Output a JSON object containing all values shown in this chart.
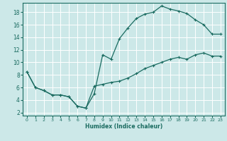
{
  "xlabel": "Humidex (Indice chaleur)",
  "background_color": "#cce8e8",
  "grid_color": "#ffffff",
  "line_color": "#1a6b60",
  "xlim": [
    -0.5,
    23.5
  ],
  "ylim": [
    1.5,
    19.5
  ],
  "xticks": [
    0,
    1,
    2,
    3,
    4,
    5,
    6,
    7,
    8,
    9,
    10,
    11,
    12,
    13,
    14,
    15,
    16,
    17,
    18,
    19,
    20,
    21,
    22,
    23
  ],
  "yticks": [
    2,
    4,
    6,
    8,
    10,
    12,
    14,
    16,
    18
  ],
  "line1_x": [
    0,
    1,
    2,
    3,
    4,
    5,
    6,
    7,
    8,
    9,
    10,
    11,
    12,
    13,
    14,
    15,
    16,
    17,
    18,
    19,
    20,
    21,
    22,
    23
  ],
  "line1_y": [
    8.5,
    6.0,
    5.5,
    4.8,
    4.8,
    4.5,
    3.0,
    2.7,
    5.0,
    11.2,
    10.5,
    13.8,
    15.5,
    17.0,
    17.7,
    18.0,
    19.0,
    18.5,
    18.2,
    17.8,
    16.8,
    16.0,
    14.5,
    14.5
  ],
  "line2_x": [
    0,
    1,
    2,
    3,
    4,
    5,
    6,
    7,
    8,
    9,
    10,
    11,
    12,
    13,
    14,
    15,
    16,
    17,
    18,
    19,
    20,
    21,
    22,
    23
  ],
  "line2_y": [
    8.5,
    6.0,
    5.5,
    4.8,
    4.8,
    4.5,
    3.0,
    2.7,
    6.2,
    6.5,
    6.8,
    7.0,
    7.5,
    8.2,
    9.0,
    9.5,
    10.0,
    10.5,
    10.8,
    10.5,
    11.2,
    11.5,
    11.0,
    11.0
  ]
}
